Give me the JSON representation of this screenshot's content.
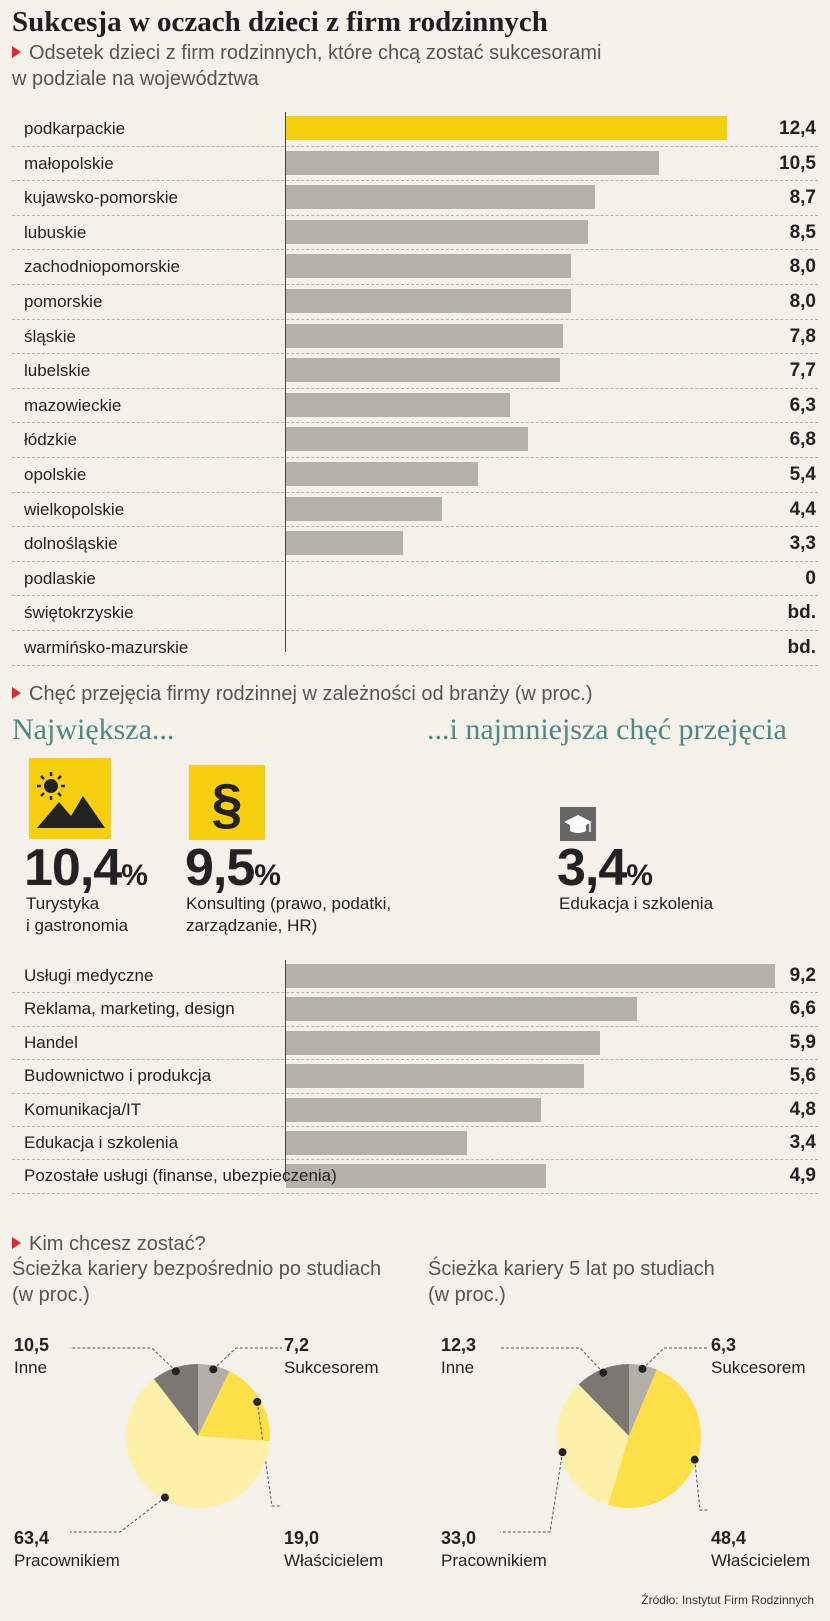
{
  "title": "Sukcesja w oczach dzieci z firm rodzinnych",
  "subtitle_line1": "Odsetek dzieci z firm rodzinnych, które chcą zostać sukcesorami",
  "subtitle_line2": "w podziale na województwa",
  "section2_header": "Chęć przejęcia firmy rodzinnej w zależności od branży (w proc.)",
  "largest_label": "Największa...",
  "smallest_label": "...i najmniejsza chęć przejęcia",
  "highlights": [
    {
      "value": "10,4",
      "unit": "%",
      "label_line1": "Turystyka",
      "label_line2": "i gastronomia",
      "icon": "landscape-icon"
    },
    {
      "value": "9,5",
      "unit": "%",
      "label_line1": "Konsulting (prawo, podatki,",
      "label_line2": "zarządzanie, HR)",
      "icon": "paragraph-icon"
    },
    {
      "value": "3,4",
      "unit": "%",
      "label_line1": "Edukacja i szkolenia",
      "label_line2": "",
      "icon": "graduation-cap-icon"
    }
  ],
  "section3_header": "Kim chcesz zostać?",
  "pie1_title_line1": "Ścieżka kariery bezpośrednio po studiach",
  "pie1_title_line2": "(w proc.)",
  "pie2_title_line1": "Ścieżka kariery 5 lat po studiach",
  "pie2_title_line2": "(w proc.)",
  "source": "Źródło: Instytut Firm Rodzinnych",
  "colors": {
    "highlight": "#f8cf0f",
    "bar": "#b5b0aa",
    "accent_title": "#4f8784",
    "triangle": "#e3262b"
  },
  "chart_data": [
    {
      "type": "bar",
      "orientation": "horizontal",
      "categories": [
        "podkarpackie",
        "małopolskie",
        "kujawsko-pomorskie",
        "lubuskie",
        "zachodniopomorskie",
        "pomorskie",
        "śląskie",
        "lubelskie",
        "mazowieckie",
        "łódzkie",
        "opolskie",
        "wielkopolskie",
        "dolnośląskie",
        "podlaskie",
        "świętokrzyskie",
        "warmińsko-mazurskie"
      ],
      "values": [
        12.4,
        10.5,
        8.7,
        8.5,
        8.0,
        8.0,
        7.8,
        7.7,
        6.3,
        6.8,
        5.4,
        4.4,
        3.3,
        0,
        null,
        null
      ],
      "value_labels": [
        "12,4",
        "10,5",
        "8,7",
        "8,5",
        "8,0",
        "8,0",
        "7,8",
        "7,7",
        "6,3",
        "6,8",
        "5,4",
        "4,4",
        "3,3",
        "0",
        "bd.",
        "bd."
      ],
      "highlight_index": 0,
      "xlim": [
        0,
        12.4
      ]
    },
    {
      "type": "bar",
      "orientation": "horizontal",
      "categories": [
        "Usługi medyczne",
        "Reklama, marketing, design",
        "Handel",
        "Budownictwo i produkcja",
        "Komunikacja/IT",
        "Edukacja i szkolenia",
        "Pozostałe usługi (finanse, ubezpieczenia)"
      ],
      "values": [
        9.2,
        6.6,
        5.9,
        5.6,
        4.8,
        3.4,
        4.9
      ],
      "value_labels": [
        "9,2",
        "6,6",
        "5,9",
        "5,6",
        "4,8",
        "3,4",
        "4,9"
      ],
      "xlim": [
        0,
        9.2
      ]
    },
    {
      "type": "pie",
      "slices": [
        {
          "name": "Sukcesorem",
          "value": 7.2,
          "label": "7,2",
          "color": "#b2aea8"
        },
        {
          "name": "Właścicielem",
          "value": 19.0,
          "label": "19,0",
          "color": "#fde047"
        },
        {
          "name": "Pracownikiem",
          "value": 63.4,
          "label": "63,4",
          "color": "#fdf0a8"
        },
        {
          "name": "Inne",
          "value": 10.5,
          "label": "10,5",
          "color": "#7b7873"
        }
      ]
    },
    {
      "type": "pie",
      "slices": [
        {
          "name": "Sukcesorem",
          "value": 6.3,
          "label": "6,3",
          "color": "#b2aea8"
        },
        {
          "name": "Właścicielem",
          "value": 48.4,
          "label": "48,4",
          "color": "#fde047"
        },
        {
          "name": "Pracownikiem",
          "value": 33.0,
          "label": "33,0",
          "color": "#fdf0a8"
        },
        {
          "name": "Inne",
          "value": 12.3,
          "label": "12,3",
          "color": "#7b7873"
        }
      ]
    }
  ]
}
